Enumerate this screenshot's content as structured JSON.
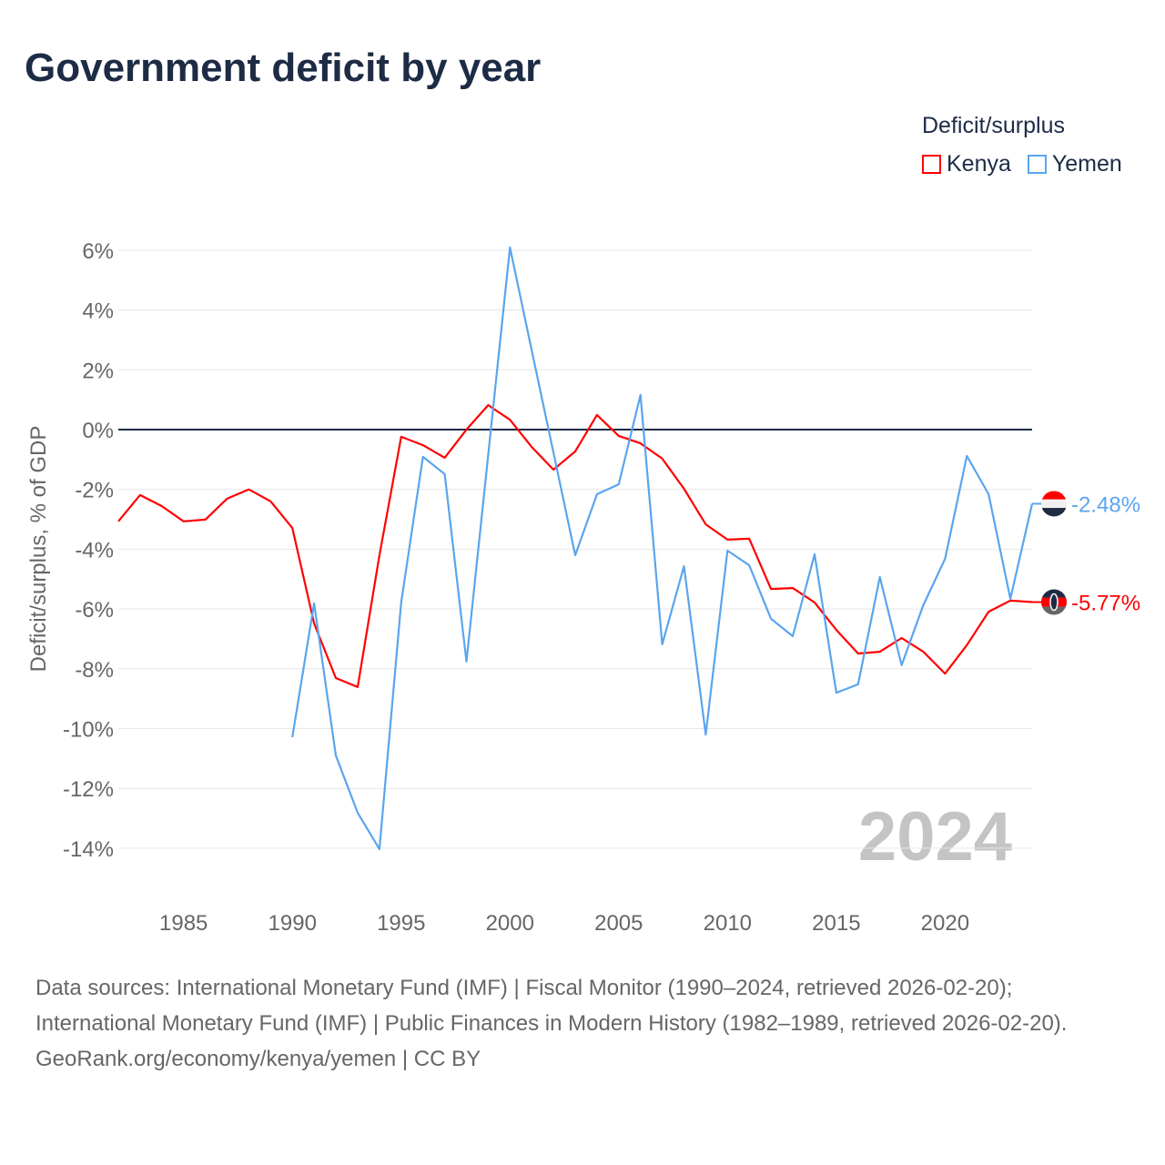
{
  "title": "Government deficit by year",
  "legend": {
    "title": "Deficit/surplus",
    "items": [
      {
        "label": "Kenya",
        "color": "#ff0000"
      },
      {
        "label": "Yemen",
        "color": "#5aa5ee"
      }
    ]
  },
  "chart_data": {
    "type": "line",
    "title": "Government deficit by year",
    "ylabel": "Deficit/surplus, % of GDP",
    "xlabel": "",
    "xlim": [
      1982,
      2024
    ],
    "ylim": [
      -14,
      6
    ],
    "x_ticks": [
      1985,
      1990,
      1995,
      2000,
      2005,
      2010,
      2015,
      2020
    ],
    "y_ticks": [
      6,
      4,
      2,
      0,
      -2,
      -4,
      -6,
      -8,
      -10,
      -12,
      -14
    ],
    "y_tick_labels": [
      "6%",
      "4%",
      "2%",
      "0%",
      "-2%",
      "-4%",
      "-6%",
      "-8%",
      "-10%",
      "-12%",
      "-14%"
    ],
    "x_tick_labels": [
      "1985",
      "1990",
      "1995",
      "2000",
      "2005",
      "2010",
      "2015",
      "2020"
    ],
    "year_watermark": "2024",
    "series": [
      {
        "name": "Kenya",
        "color": "#ff0000",
        "end_label": "-5.77%",
        "start_year": 1982,
        "values": [
          -3.07,
          -2.19,
          -2.56,
          -3.07,
          -3.01,
          -2.31,
          -2.0,
          -2.4,
          -3.29,
          -6.48,
          -8.31,
          -8.61,
          -4.2,
          -0.24,
          -0.52,
          -0.94,
          0.0,
          0.82,
          0.33,
          -0.58,
          -1.34,
          -0.73,
          0.49,
          -0.21,
          -0.46,
          -0.97,
          -1.98,
          -3.17,
          -3.68,
          -3.65,
          -5.33,
          -5.3,
          -5.78,
          -6.7,
          -7.49,
          -7.43,
          -6.97,
          -7.43,
          -8.16,
          -7.21,
          -6.09,
          -5.72,
          -5.77
        ]
      },
      {
        "name": "Yemen",
        "color": "#5aa5ee",
        "end_label": "-2.48%",
        "start_year": 1990,
        "values": [
          -10.29,
          -5.81,
          -10.9,
          -12.82,
          -14.03,
          -5.78,
          -0.91,
          -1.49,
          -7.76,
          -0.85,
          6.09,
          2.65,
          -0.77,
          -4.2,
          -2.16,
          -1.83,
          1.16,
          -7.18,
          -4.57,
          -10.2,
          -4.05,
          -4.54,
          -6.33,
          -6.91,
          -4.17,
          -8.8,
          -8.52,
          -4.93,
          -7.88,
          -5.87,
          -4.32,
          -0.88,
          -2.16,
          -5.66,
          -2.48
        ]
      }
    ]
  },
  "footer": {
    "sources": "Data sources: International Monetary Fund (IMF) | Fiscal Monitor (1990–2024, retrieved 2026-02-20); International Monetary Fund (IMF) | Public Finances in Modern History (1982–1989, retrieved 2026-02-20).",
    "credit": "GeoRank.org/economy/kenya/yemen | CC BY"
  }
}
